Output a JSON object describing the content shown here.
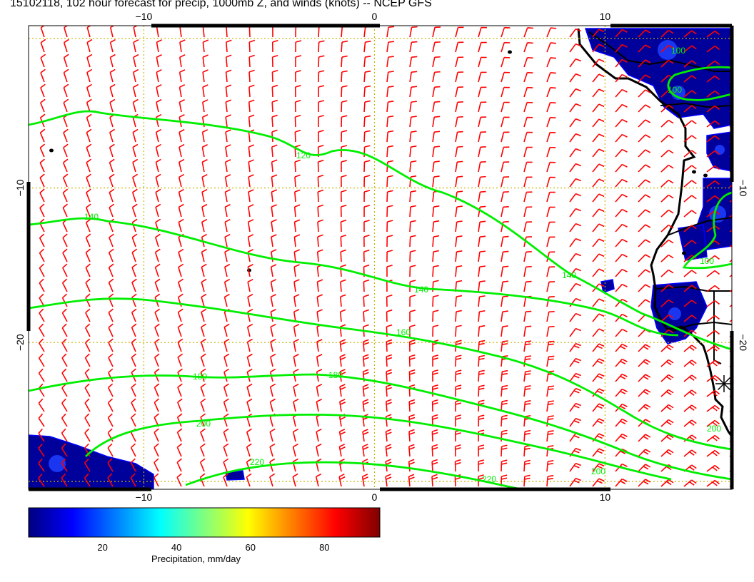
{
  "title": "15102118, 102 hour forecast for precip, 1000mb Z, and winds (knots) -- NCEP GFS",
  "map": {
    "lon_range": [
      -15,
      15.5
    ],
    "lat_range": [
      -29.5,
      0.5
    ],
    "lon_ticks": [
      -10,
      0,
      10
    ],
    "lat_ticks": [
      -10,
      -20
    ],
    "lon_tick_labels": [
      "−10",
      "0",
      "10"
    ],
    "lat_tick_labels": [
      "−10",
      "−20"
    ],
    "gridline_style": "dotted",
    "gridline_color": "#c8b400",
    "barb_color": "#ff0000",
    "contour_color": "#00ee00",
    "coast_color": "#000000"
  },
  "contours": [
    {
      "label": "120",
      "label_count": 2
    },
    {
      "label": "140",
      "label_count": 3
    },
    {
      "label": "160",
      "label_count": 2
    },
    {
      "label": "180",
      "label_count": 2
    },
    {
      "label": "200",
      "label_count": 3
    },
    {
      "label": "220",
      "label_count": 2
    },
    {
      "label": "100",
      "label_count": 3
    }
  ],
  "colorbar": {
    "label": "Precipitation, mm/day",
    "ticks": [
      "20",
      "40",
      "60",
      "80"
    ],
    "tick_values": [
      20,
      40,
      60,
      80
    ],
    "range": [
      0,
      95
    ],
    "colors": [
      "#00007f",
      "#0000ff",
      "#007fff",
      "#00ffff",
      "#7fff7f",
      "#ffff00",
      "#ff7f00",
      "#ff0000",
      "#7f0000"
    ]
  }
}
